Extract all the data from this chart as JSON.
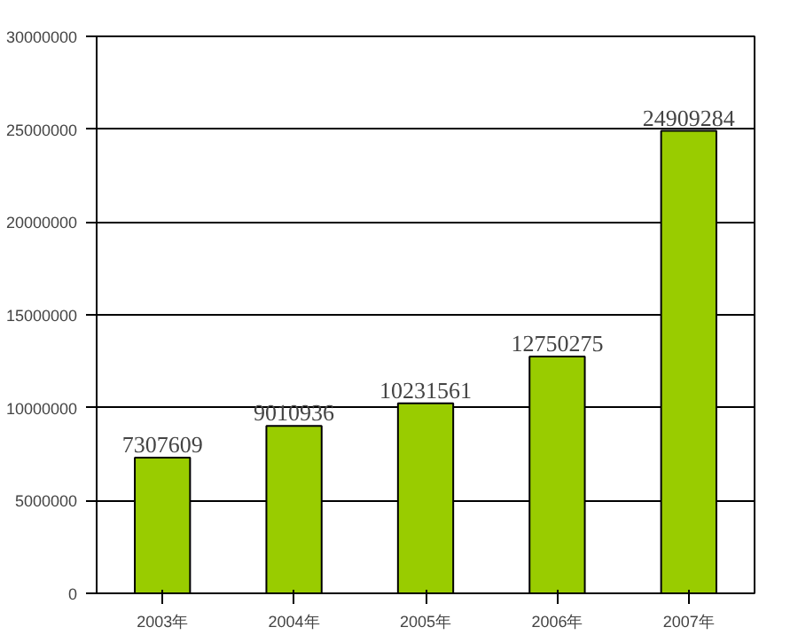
{
  "chart_data": {
    "type": "bar",
    "categories": [
      "2003年",
      "2004年",
      "2005年",
      "2006年",
      "2007年"
    ],
    "values": [
      7307609,
      9010936,
      10231561,
      12750275,
      24909284
    ],
    "color": "#99cc00",
    "data_labels": true,
    "grid": "y",
    "ylim": [
      0,
      30000000
    ],
    "yticks": [
      0,
      5000000,
      10000000,
      15000000,
      20000000,
      25000000,
      30000000
    ]
  }
}
